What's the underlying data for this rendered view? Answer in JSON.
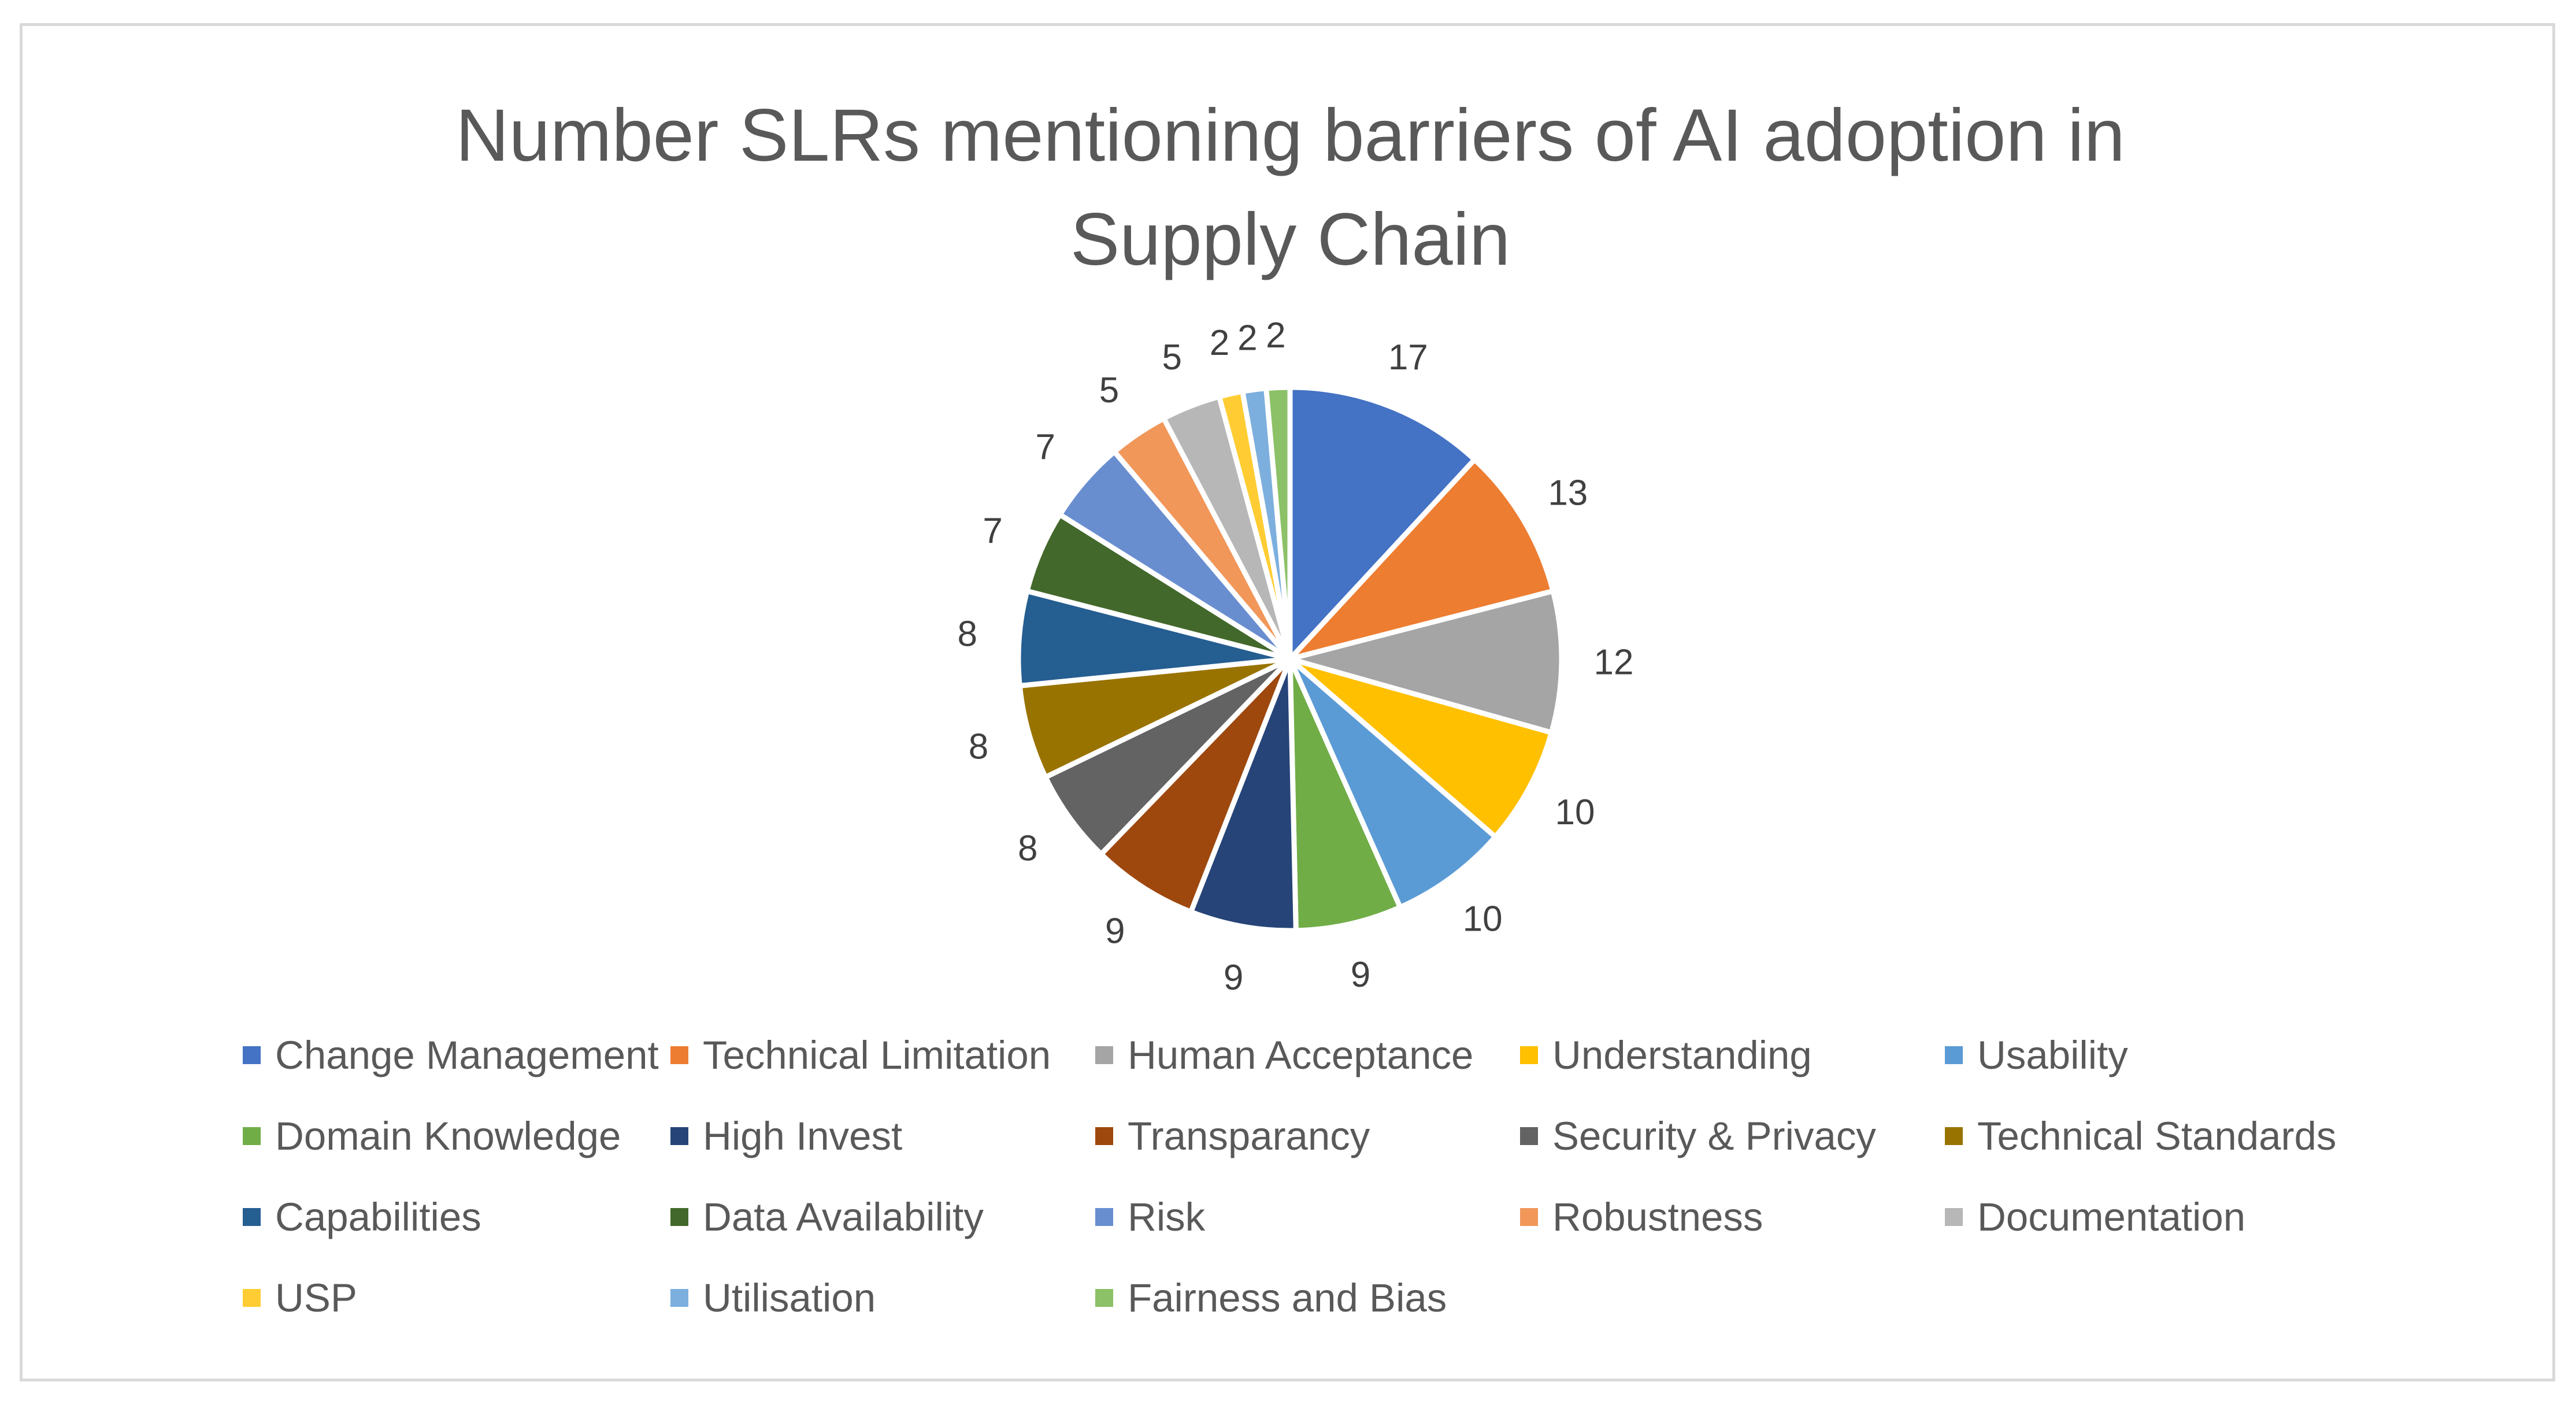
{
  "chart_data": {
    "type": "pie",
    "title": "Number SLRs mentioning barriers of AI adoption in Supply Chain",
    "title_lines": [
      "Number SLRs mentioning barriers of AI adoption in",
      "Supply Chain"
    ],
    "categories": [
      "Change Management",
      "Technical Limitation",
      "Human Acceptance",
      "Understanding",
      "Usability",
      "Domain Knowledge",
      "High Invest",
      "Transparancy",
      "Security & Privacy",
      "Technical Standards",
      "Capabilities",
      "Data Availability",
      "Risk",
      "Robustness",
      "Documentation",
      "USP",
      "Utilisation",
      "Fairness and Bias"
    ],
    "values": [
      17,
      13,
      12,
      10,
      10,
      9,
      9,
      9,
      8,
      8,
      8,
      7,
      7,
      5,
      5,
      2,
      2,
      2
    ],
    "data_labels": [
      "17",
      "13",
      "12",
      "10",
      "10",
      "9",
      "9",
      "9",
      "8",
      "8",
      "8",
      "7",
      "7",
      "5",
      "5",
      "2",
      "2",
      "2"
    ],
    "colors": [
      "#4472C4",
      "#ED7D31",
      "#A5A5A5",
      "#FFC000",
      "#5B9BD5",
      "#70AD47",
      "#264478",
      "#9E480E",
      "#636363",
      "#997300",
      "#255E91",
      "#43682B",
      "#698ED0",
      "#F1975A",
      "#B7B7B7",
      "#FFCD33",
      "#7CAFDD",
      "#8CC168"
    ],
    "legend_position": "bottom",
    "start_angle": "12 o'clock, clockwise",
    "grid": false
  }
}
